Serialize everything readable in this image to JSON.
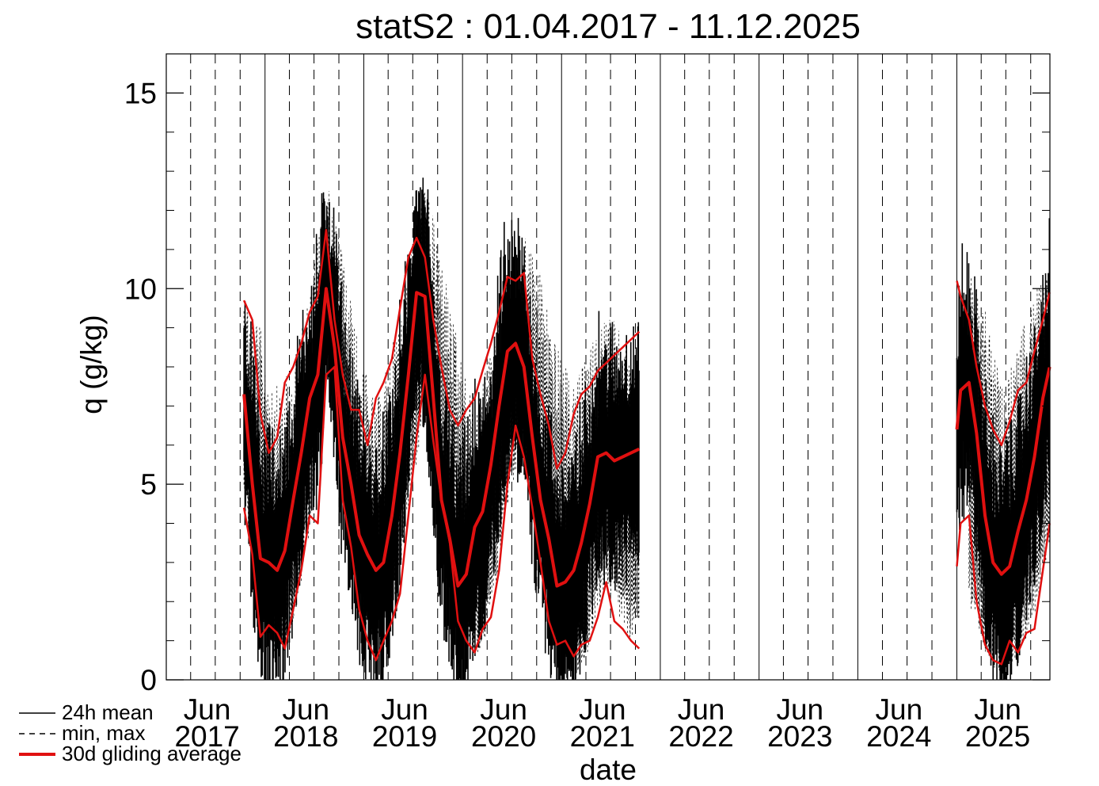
{
  "chart_data": {
    "type": "line",
    "title": "statS2 : 01.04.2017 - 11.12.2025",
    "xlabel": "date",
    "ylabel": "q (g/kg)",
    "ylim": [
      0,
      16
    ],
    "xlim": [
      "2017-01-01",
      "2025-12-11"
    ],
    "y_ticks": [
      0,
      5,
      10,
      15
    ],
    "x_ticks": [
      {
        "month": "Jun",
        "year": "2017",
        "date": "2017-06-01"
      },
      {
        "month": "Jun",
        "year": "2018",
        "date": "2018-06-01"
      },
      {
        "month": "Jun",
        "year": "2019",
        "date": "2019-06-01"
      },
      {
        "month": "Jun",
        "year": "2020",
        "date": "2020-06-01"
      },
      {
        "month": "Jun",
        "year": "2021",
        "date": "2021-06-01"
      },
      {
        "month": "Jun",
        "year": "2022",
        "date": "2022-06-01"
      },
      {
        "month": "Jun",
        "year": "2023",
        "date": "2023-06-01"
      },
      {
        "month": "Jun",
        "year": "2024",
        "date": "2024-06-01"
      },
      {
        "month": "Jun",
        "year": "2025",
        "date": "2025-06-01"
      }
    ],
    "grid": "vertical lines: solid at Jan 1, dashed at Apr 1 / Jul 1 / Oct 1",
    "legend_position": "bottom-left, outside plot",
    "colors": {
      "mean": "#000000",
      "minmax": "#000000",
      "gliding": "#e01010"
    },
    "series": [
      {
        "name": "24h mean",
        "style": "solid black",
        "segments": [
          {
            "x": [
              "2017-10-15",
              "2017-11-15",
              "2017-12-15",
              "2018-01-15",
              "2018-02-15",
              "2018-03-15",
              "2018-04-15",
              "2018-05-15",
              "2018-06-15",
              "2018-07-15",
              "2018-08-15",
              "2018-09-15",
              "2018-10-15",
              "2018-11-15",
              "2018-12-15",
              "2019-01-15",
              "2019-02-15",
              "2019-03-15",
              "2019-04-15",
              "2019-05-15",
              "2019-06-15",
              "2019-07-15",
              "2019-08-15",
              "2019-09-15",
              "2019-10-15",
              "2019-11-15",
              "2019-12-15",
              "2020-01-15",
              "2020-02-15",
              "2020-03-15",
              "2020-04-15",
              "2020-05-15",
              "2020-06-15",
              "2020-07-15",
              "2020-08-15",
              "2020-09-15",
              "2020-10-15",
              "2020-11-15",
              "2020-12-15",
              "2021-01-15",
              "2021-02-15",
              "2021-03-15",
              "2021-04-15",
              "2021-05-15",
              "2021-06-15",
              "2021-07-15",
              "2021-08-15",
              "2021-09-15",
              "2021-10-15"
            ],
            "y": [
              7.3,
              5.0,
              3.1,
              3.0,
              2.8,
              3.3,
              4.6,
              5.8,
              7.2,
              7.8,
              10.0,
              8.5,
              6.2,
              5.0,
              3.7,
              3.2,
              2.8,
              3.0,
              4.2,
              5.8,
              7.8,
              9.9,
              9.8,
              7.2,
              4.6,
              3.6,
              2.4,
              2.7,
              3.9,
              4.3,
              5.5,
              7.0,
              8.4,
              8.6,
              8.0,
              6.2,
              4.6,
              3.6,
              2.4,
              2.5,
              2.8,
              3.5,
              4.5,
              5.7,
              5.8,
              5.6,
              5.7,
              5.8,
              5.9
            ]
          },
          {
            "x": [
              "2025-01-01",
              "2025-01-15",
              "2025-02-15",
              "2025-03-15",
              "2025-04-15",
              "2025-05-15",
              "2025-06-15",
              "2025-07-15",
              "2025-08-15",
              "2025-09-15",
              "2025-10-15",
              "2025-11-15",
              "2025-12-10"
            ],
            "y": [
              6.4,
              7.4,
              7.6,
              6.3,
              4.2,
              3.0,
              2.7,
              2.9,
              3.8,
              4.6,
              5.7,
              7.2,
              8.0
            ]
          }
        ]
      },
      {
        "name": "min, max",
        "style": "dashed black",
        "segments": [
          {
            "x": [
              "2017-10-15",
              "2017-12-15",
              "2018-02-15",
              "2018-04-15",
              "2018-06-15",
              "2018-08-15",
              "2018-10-15",
              "2018-12-15",
              "2019-02-15",
              "2019-04-15",
              "2019-06-15",
              "2019-08-15",
              "2019-10-15",
              "2019-12-15",
              "2020-02-15",
              "2020-04-15",
              "2020-06-15",
              "2020-08-15",
              "2020-10-15",
              "2020-12-15",
              "2021-02-15",
              "2021-04-15",
              "2021-06-15",
              "2021-08-15",
              "2021-10-15"
            ],
            "y_min": [
              4.2,
              2.0,
              0.5,
              1.2,
              3.8,
              8.2,
              4.5,
              1.8,
              0.4,
              1.5,
              4.2,
              6.8,
              4.2,
              1.6,
              0.5,
              1.4,
              4.5,
              5.5,
              3.2,
              1.0,
              0.0,
              0.8,
              2.5,
              1.2,
              0.9
            ],
            "y_max": [
              10.2,
              9.0,
              7.5,
              8.0,
              10.0,
              12.8,
              11.0,
              8.5,
              7.0,
              8.5,
              11.0,
              12.7,
              11.0,
              8.5,
              7.0,
              8.5,
              10.5,
              11.6,
              10.5,
              8.5,
              7.5,
              8.5,
              9.5,
              8.8,
              8.5
            ]
          },
          {
            "x": [
              "2025-02-15",
              "2025-04-15",
              "2025-06-15",
              "2025-08-15",
              "2025-10-15",
              "2025-12-10"
            ],
            "y_min": [
              2.0,
              0.6,
              0.0,
              0.6,
              1.5,
              3.5
            ],
            "y_max": [
              10.5,
              9.5,
              7.5,
              8.5,
              10.0,
              10.4
            ]
          }
        ]
      },
      {
        "name": "30d gliding average",
        "style": "solid red thick",
        "segments": [
          {
            "role": "upper",
            "x": [
              "2017-10-15",
              "2017-11-15",
              "2017-12-15",
              "2018-01-15",
              "2018-02-15",
              "2018-03-15",
              "2018-04-15",
              "2018-05-15",
              "2018-06-15",
              "2018-07-15",
              "2018-08-15",
              "2018-09-15",
              "2018-10-15",
              "2018-11-15",
              "2018-12-15",
              "2019-01-15",
              "2019-02-15",
              "2019-03-15",
              "2019-04-15",
              "2019-05-15",
              "2019-06-15",
              "2019-07-15",
              "2019-08-15",
              "2019-09-15",
              "2019-10-15",
              "2019-11-15",
              "2019-12-15",
              "2020-01-15",
              "2020-02-15",
              "2020-03-15",
              "2020-04-15",
              "2020-05-15",
              "2020-06-15",
              "2020-07-15",
              "2020-08-15",
              "2020-09-15",
              "2020-10-15",
              "2020-11-15",
              "2020-12-15",
              "2021-01-15",
              "2021-02-15",
              "2021-03-15",
              "2021-04-15",
              "2021-05-15",
              "2021-06-15",
              "2021-07-15",
              "2021-08-15",
              "2021-09-15",
              "2021-10-15"
            ],
            "y": [
              9.7,
              9.2,
              6.8,
              5.8,
              6.2,
              7.6,
              8.0,
              8.6,
              9.4,
              9.8,
              11.5,
              9.2,
              7.8,
              6.9,
              6.9,
              6.0,
              7.2,
              7.6,
              8.2,
              9.5,
              10.8,
              11.3,
              10.8,
              9.2,
              8.0,
              6.9,
              6.5,
              6.9,
              7.2,
              7.9,
              8.6,
              9.4,
              10.3,
              10.2,
              10.4,
              8.2,
              7.3,
              6.5,
              5.4,
              5.8,
              6.8,
              7.3,
              7.5,
              7.9,
              8.1,
              8.3,
              8.5,
              8.7,
              8.9
            ]
          },
          {
            "role": "lower",
            "x": [
              "2017-10-15",
              "2017-11-15",
              "2017-12-15",
              "2018-01-15",
              "2018-02-15",
              "2018-03-15",
              "2018-04-15",
              "2018-05-15",
              "2018-06-15",
              "2018-07-15",
              "2018-08-15",
              "2018-09-15",
              "2018-10-15",
              "2018-11-15",
              "2018-12-15",
              "2019-01-15",
              "2019-02-15",
              "2019-03-15",
              "2019-04-15",
              "2019-05-15",
              "2019-06-15",
              "2019-07-15",
              "2019-08-15",
              "2019-09-15",
              "2019-10-15",
              "2019-11-15",
              "2019-12-15",
              "2020-01-15",
              "2020-02-15",
              "2020-03-15",
              "2020-04-15",
              "2020-05-15",
              "2020-06-15",
              "2020-07-15",
              "2020-08-15",
              "2020-09-15",
              "2020-10-15",
              "2020-11-15",
              "2020-12-15",
              "2021-01-15",
              "2021-02-15",
              "2021-03-15",
              "2021-04-15",
              "2021-05-15",
              "2021-06-15",
              "2021-07-15",
              "2021-08-15",
              "2021-09-15",
              "2021-10-15"
            ],
            "y": [
              4.4,
              3.2,
              1.1,
              1.4,
              1.2,
              0.8,
              1.8,
              2.8,
              4.2,
              4.0,
              7.8,
              8.0,
              4.6,
              3.4,
              1.8,
              1.0,
              0.5,
              1.0,
              1.5,
              2.2,
              4.2,
              6.2,
              7.8,
              6.1,
              4.6,
              3.5,
              1.5,
              1.0,
              0.7,
              1.3,
              1.6,
              2.8,
              5.0,
              6.5,
              5.7,
              4.4,
              3.0,
              1.5,
              0.9,
              1.0,
              0.6,
              0.9,
              1.0,
              1.6,
              2.5,
              1.5,
              1.3,
              1.0,
              0.8
            ]
          },
          {
            "role": "upper",
            "x": [
              "2025-01-01",
              "2025-01-15",
              "2025-02-15",
              "2025-03-15",
              "2025-04-15",
              "2025-05-15",
              "2025-06-15",
              "2025-07-15",
              "2025-08-15",
              "2025-09-15",
              "2025-10-15",
              "2025-11-15",
              "2025-12-10"
            ],
            "y": [
              10.2,
              9.8,
              9.2,
              8.0,
              7.0,
              6.4,
              6.0,
              6.6,
              7.4,
              7.6,
              8.4,
              9.2,
              9.9
            ]
          },
          {
            "role": "lower",
            "x": [
              "2025-01-01",
              "2025-01-15",
              "2025-02-15",
              "2025-03-15",
              "2025-04-15",
              "2025-05-15",
              "2025-06-15",
              "2025-07-15",
              "2025-08-15",
              "2025-09-15",
              "2025-10-15",
              "2025-11-15",
              "2025-12-10"
            ],
            "y": [
              2.9,
              4.0,
              4.2,
              2.0,
              0.9,
              0.5,
              0.4,
              1.0,
              0.7,
              1.2,
              1.3,
              2.8,
              4.0
            ]
          }
        ]
      }
    ],
    "legend": [
      {
        "label": "24h mean",
        "style": "solid-thin"
      },
      {
        "label": "min, max",
        "style": "dashed"
      },
      {
        "label": "30d gliding average",
        "style": "solid-red-thick"
      }
    ]
  }
}
